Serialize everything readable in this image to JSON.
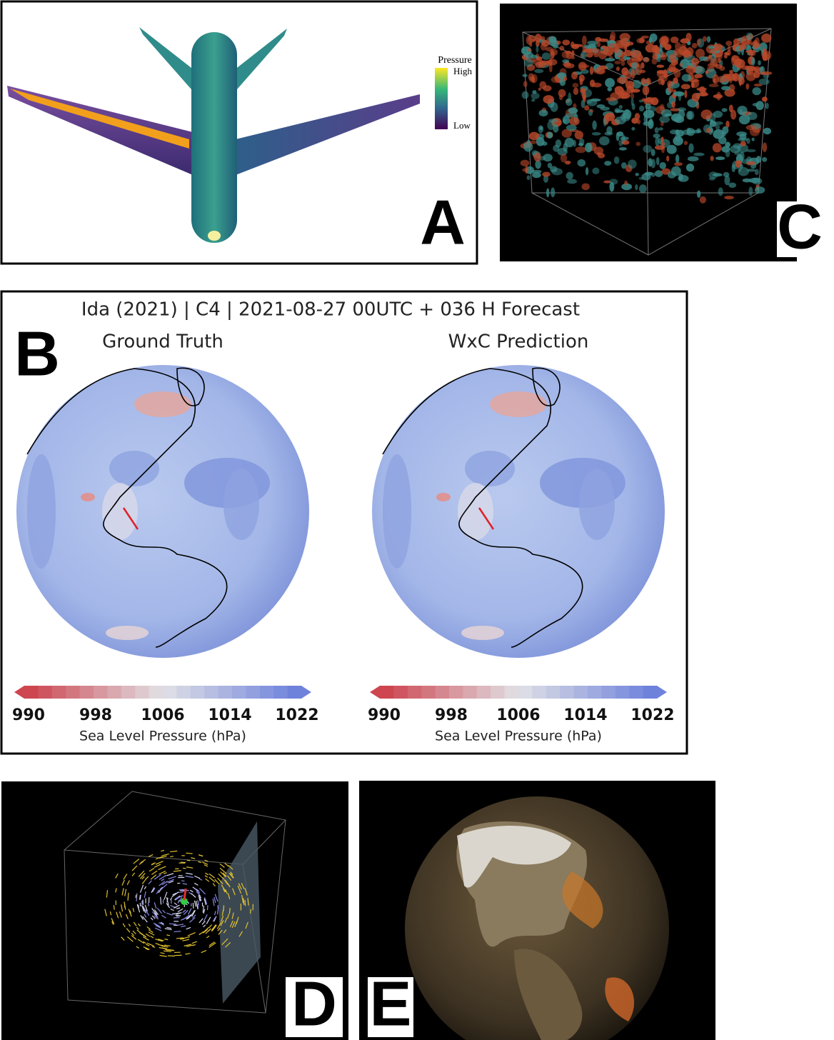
{
  "panels": {
    "a": {
      "label": "A",
      "legend": {
        "title": "Pressure",
        "high": "High",
        "low": "Low"
      }
    },
    "b": {
      "label": "B",
      "title": "Ida (2021) | C4 | 2021-08-27 00UTC + 036 H Forecast",
      "maps": [
        {
          "title": "Ground Truth",
          "colorbar": {
            "ticks": [
              990,
              998,
              1006,
              1014,
              1022
            ],
            "label": "Sea Level Pressure (hPa)"
          }
        },
        {
          "title": "WxC Prediction",
          "colorbar": {
            "ticks": [
              990,
              998,
              1006,
              1014,
              1022
            ],
            "label": "Sea Level Pressure (hPa)"
          }
        }
      ]
    },
    "c": {
      "label": "C"
    },
    "d": {
      "label": "D"
    },
    "e": {
      "label": "E"
    }
  }
}
